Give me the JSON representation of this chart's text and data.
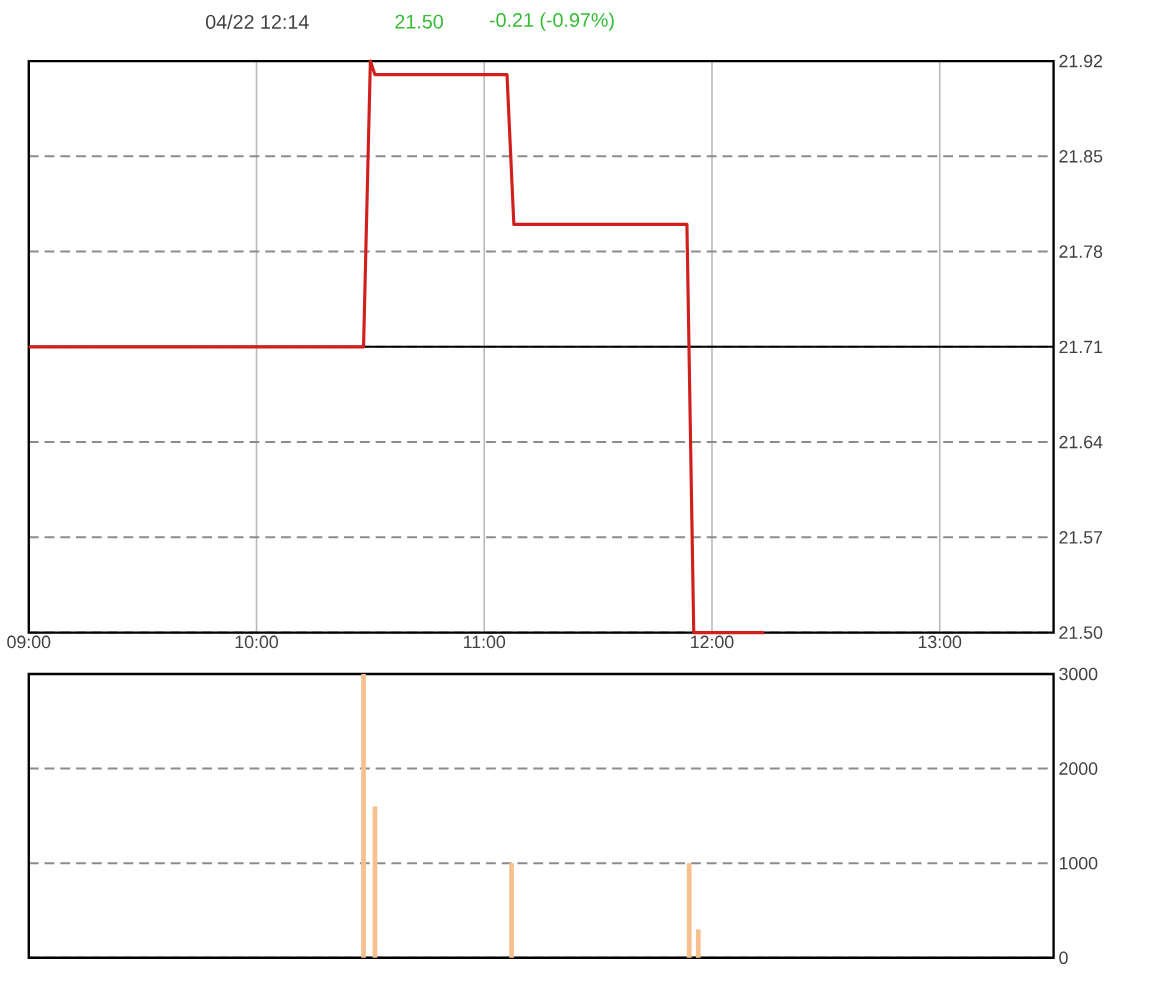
{
  "chart_data": [
    {
      "type": "line",
      "title": "04/22 12:14",
      "annotations": [
        "21.50",
        "-0.21 (-0.97%)"
      ],
      "series": [
        {
          "color": "#d0201e",
          "x": [
            9,
            10.47,
            10.5,
            10.52,
            11.1,
            11.13,
            11.89,
            11.92,
            12.23
          ],
          "values": [
            21.71,
            21.71,
            21.92,
            21.91,
            21.91,
            21.8,
            21.8,
            21.5,
            21.5
          ]
        }
      ],
      "xlim": [
        9,
        13.5
      ],
      "xticks": [
        {
          "value": 9,
          "label": "09:00"
        },
        {
          "value": 10,
          "label": "10:00"
        },
        {
          "value": 11,
          "label": "11:00"
        },
        {
          "value": 12,
          "label": "12:00"
        },
        {
          "value": 13,
          "label": "13:00"
        }
      ],
      "ylim": [
        21.5,
        21.92
      ],
      "yticks": [
        {
          "value": 21.5,
          "label": "21.50"
        },
        21.57,
        21.64,
        21.71,
        21.78,
        21.85,
        21.92
      ],
      "grid": true,
      "ref_lines": [
        {
          "axis": "y",
          "value": 21.71,
          "color": "#000000"
        }
      ]
    },
    {
      "type": "bar",
      "color": "#f7c08c",
      "x": [
        10.47,
        10.52,
        11.12,
        11.9,
        11.94
      ],
      "values": [
        3000,
        1600,
        1000,
        1000,
        300
      ],
      "xlim": [
        9,
        13.5
      ],
      "ylim": [
        0,
        3000
      ],
      "yticks": [
        0,
        1000,
        2000,
        3000
      ],
      "grid": "y",
      "tick_labels": "y"
    }
  ]
}
